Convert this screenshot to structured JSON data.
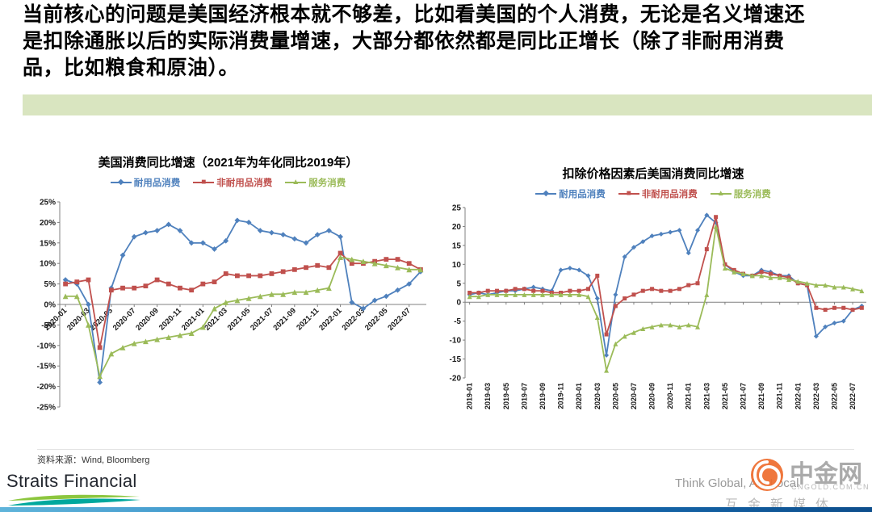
{
  "page": {
    "intro_text": "当前核心的问题是美国经济根本就不够差，比如看美国的个人消费，无论是名义增速还是扣除通胀以后的实际消费量增速，大部分都依然都是同比正增长（除了非耐用消费品，比如粮食和原油）。",
    "source_note": "资料来源：Wind, Bloomberg",
    "footer": {
      "logo_text": "Straits Financial",
      "tagline": "Think Global, Act Local",
      "watermark_brand": "中金网",
      "watermark_domain": "CNGOLD.COM.CN",
      "watermark_slogan": "互金新媒体"
    },
    "accent_colors": {
      "band_green": "#d9e5c0",
      "series_blue": "#4F81BD",
      "series_red": "#C0504D",
      "series_green": "#9BBB59"
    }
  },
  "chart_data": [
    {
      "type": "line",
      "title": "美国消费同比增速（2021年为年化同比2019年）",
      "legend_position": "top",
      "grid": false,
      "y_min": -25,
      "y_max": 25,
      "y_step": 5,
      "y_format": "percent",
      "x_label_every": 2,
      "x_labels": [
        "2020-01",
        "2020-03",
        "2020-05",
        "2020-07",
        "2020-09",
        "2020-11",
        "2021-01",
        "2021-03",
        "2021-05",
        "2021-07",
        "2021-09",
        "2021-11",
        "2022-01",
        "2022-03",
        "2022-05",
        "2022-07"
      ],
      "series": [
        {
          "key": "durable",
          "name": "耐用品消费",
          "color": "#4F81BD",
          "marker": "diamond",
          "values": [
            6,
            5,
            0,
            -19,
            4,
            12,
            16.5,
            17.5,
            18,
            19.5,
            18,
            15,
            15,
            13.5,
            15.5,
            20.5,
            20,
            18,
            17.5,
            17,
            16,
            15,
            17,
            18,
            16.5,
            0.5,
            -1,
            1,
            2,
            3.5,
            5,
            8
          ]
        },
        {
          "key": "nondurable",
          "name": "非耐用品消费",
          "color": "#C0504D",
          "marker": "square",
          "values": [
            5,
            5.5,
            6,
            -10.5,
            3.5,
            4,
            4,
            4.5,
            6,
            5,
            4,
            3.5,
            5,
            5.5,
            7.5,
            7,
            7,
            7,
            7.5,
            8,
            8.5,
            9,
            9.5,
            9,
            12.5,
            10,
            10,
            10.5,
            11,
            11,
            10,
            8.5
          ]
        },
        {
          "key": "services",
          "name": "服务消费",
          "color": "#9BBB59",
          "marker": "triangle",
          "values": [
            2,
            2,
            -5,
            -17.5,
            -12,
            -10.5,
            -9.5,
            -9,
            -8.5,
            -8,
            -7.5,
            -7,
            -5.5,
            -1,
            0.5,
            1,
            1.5,
            2,
            2.5,
            2.5,
            3,
            3,
            3.5,
            4,
            11.5,
            11,
            10.5,
            10,
            9.5,
            9,
            8.5,
            8.5
          ]
        }
      ]
    },
    {
      "type": "line",
      "title": "扣除价格因素后美国消费同比增速",
      "legend_position": "top",
      "grid": false,
      "y_min": -20,
      "y_max": 25,
      "y_step": 5,
      "y_format": "number",
      "x_label_every": 2,
      "x_labels": [
        "2019-01",
        "2019-03",
        "2019-05",
        "2019-07",
        "2019-09",
        "2019-11",
        "2020-01",
        "2020-03",
        "2020-05",
        "2020-07",
        "2020-09",
        "2020-11",
        "2021-01",
        "2021-03",
        "2021-05",
        "2021-07",
        "2021-09",
        "2021-11",
        "2022-01",
        "2022-03",
        "2022-05",
        "2022-07"
      ],
      "series": [
        {
          "key": "durable",
          "name": "耐用品消费",
          "color": "#4F81BD",
          "marker": "diamond",
          "values": [
            2,
            2.5,
            2,
            2.5,
            3,
            3,
            3.5,
            4,
            3.5,
            3,
            8.5,
            9,
            8.5,
            7,
            1,
            -14,
            2,
            12,
            14.5,
            16,
            17.5,
            18,
            18.5,
            19,
            13,
            19,
            23,
            21,
            10,
            8,
            7,
            7,
            8.5,
            8,
            7,
            7,
            5,
            4.5,
            -9,
            -6.5,
            -5.5,
            -5,
            -2,
            -1
          ]
        },
        {
          "key": "nondurable",
          "name": "非耐用品消费",
          "color": "#C0504D",
          "marker": "square",
          "values": [
            2.5,
            2.5,
            3,
            3,
            3,
            3.5,
            3.5,
            3,
            3,
            2.5,
            2.5,
            3,
            3,
            3.5,
            7,
            -8.5,
            -1,
            1,
            2,
            3,
            3.5,
            3,
            3,
            3.5,
            4.5,
            5,
            14,
            22.5,
            10,
            8.5,
            7.5,
            7,
            8,
            7.5,
            7,
            6.5,
            5,
            4.5,
            -1.5,
            -2,
            -1.5,
            -1.5,
            -2,
            -1.5
          ]
        },
        {
          "key": "services",
          "name": "服务消费",
          "color": "#9BBB59",
          "marker": "triangle",
          "values": [
            1.5,
            1.5,
            2,
            2,
            2,
            2,
            2,
            2,
            2,
            2,
            2,
            2,
            2,
            1.5,
            -4,
            -18,
            -11,
            -9,
            -8,
            -7,
            -6.5,
            -6,
            -6,
            -6.5,
            -6,
            -6.5,
            2,
            20,
            9,
            8,
            7.5,
            7,
            7,
            6.5,
            6.5,
            6,
            5.5,
            5,
            4.5,
            4.5,
            4,
            4,
            3.5,
            3
          ]
        }
      ]
    }
  ]
}
